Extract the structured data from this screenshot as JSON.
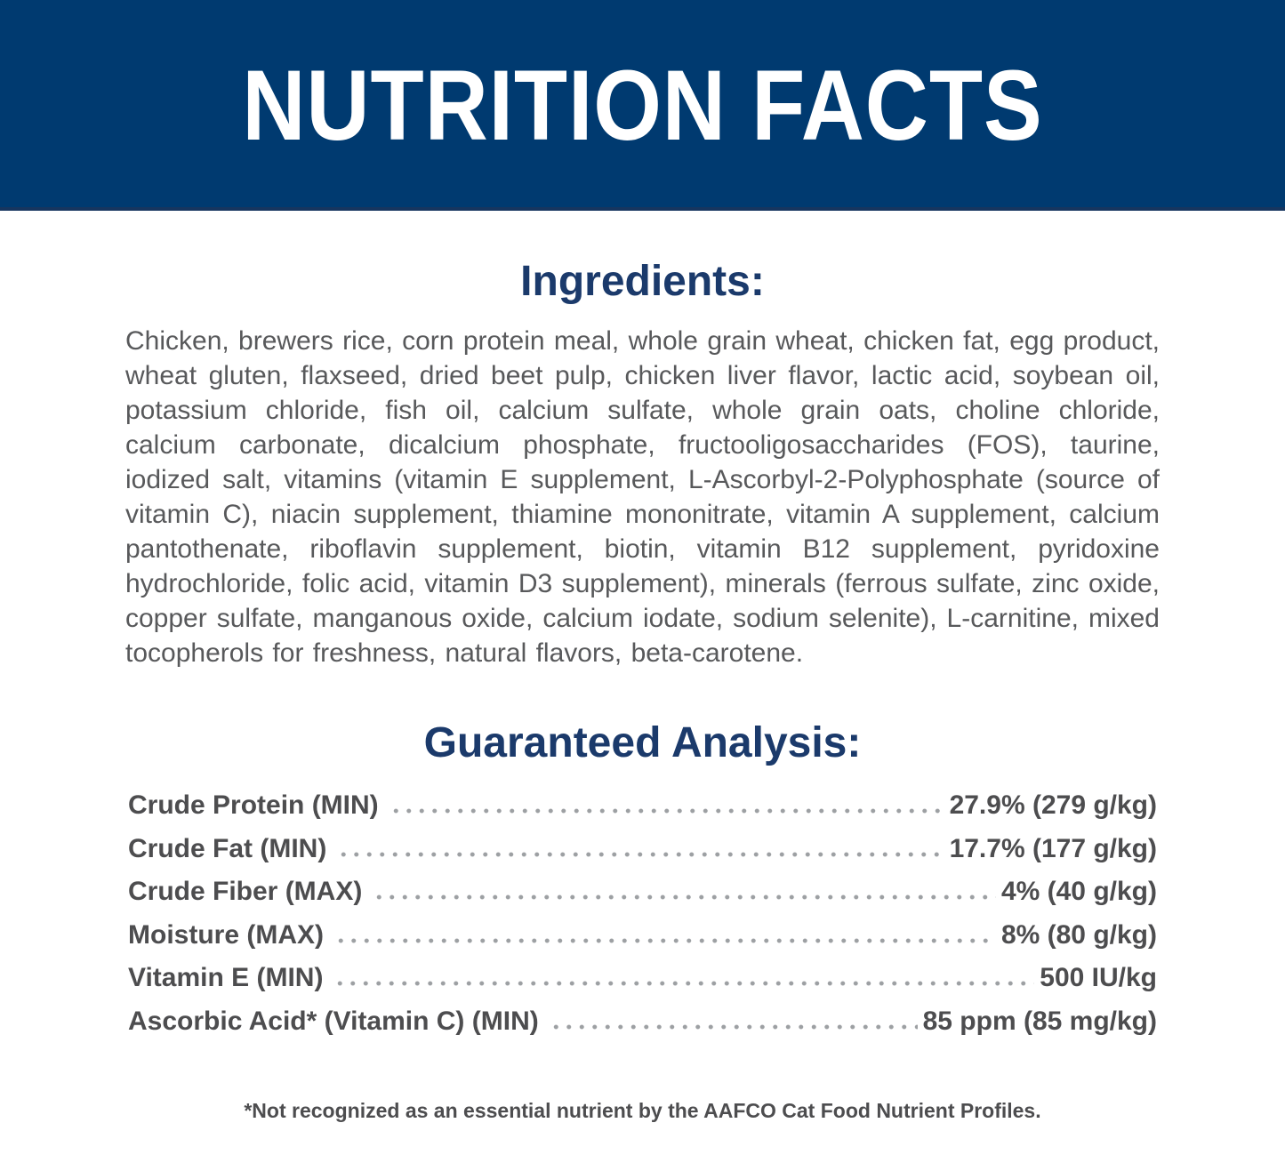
{
  "banner": {
    "title": "NUTRITION FACTS"
  },
  "ingredients": {
    "heading": "Ingredients:",
    "text": "Chicken, brewers rice, corn protein meal, whole grain wheat, chicken fat, egg product, wheat gluten, flaxseed, dried beet pulp, chicken liver flavor, lactic acid, soybean oil, potassium chloride, fish oil, calcium sulfate, whole grain oats, choline chloride, calcium carbonate, dicalcium phosphate, fructooligosaccharides (FOS), taurine, iodized salt, vitamins (vitamin E supplement, L-Ascorbyl-2-Polyphosphate (source of vitamin C), niacin supplement, thiamine mononitrate, vitamin A supplement, calcium pantothenate, riboflavin supplement, biotin, vitamin B12 supplement, pyridoxine hydrochloride, folic acid, vitamin D3 supplement), minerals (ferrous sulfate, zinc oxide, copper sulfate, manganous oxide, calcium iodate, sodium selenite), L-carnitine, mixed tocopherols for freshness, natural flavors, beta-carotene."
  },
  "guaranteed_analysis": {
    "heading": "Guaranteed Analysis:",
    "rows": [
      {
        "label": "Crude Protein (MIN)",
        "value": "27.9% (279 g/kg)"
      },
      {
        "label": "Crude Fat (MIN)",
        "value": "17.7% (177 g/kg)"
      },
      {
        "label": "Crude Fiber (MAX)",
        "value": "4% (40 g/kg)"
      },
      {
        "label": "Moisture (MAX)",
        "value": "8% (80 g/kg)"
      },
      {
        "label": "Vitamin E (MIN)",
        "value": "500 IU/kg"
      },
      {
        "label": "Ascorbic Acid* (Vitamin C) (MIN)",
        "value": "85 ppm (85 mg/kg)"
      }
    ]
  },
  "footnote": "*Not recognized as an essential nutrient by the AAFCO Cat Food Nutrient Profiles.",
  "colors": {
    "banner_bg": "#003A70",
    "banner_text": "#FFFFFF",
    "heading_navy": "#1B3A6B",
    "body_gray": "#58595B",
    "analysis_gray": "#4D4D4F",
    "dots_gray": "#9DA0A3"
  }
}
